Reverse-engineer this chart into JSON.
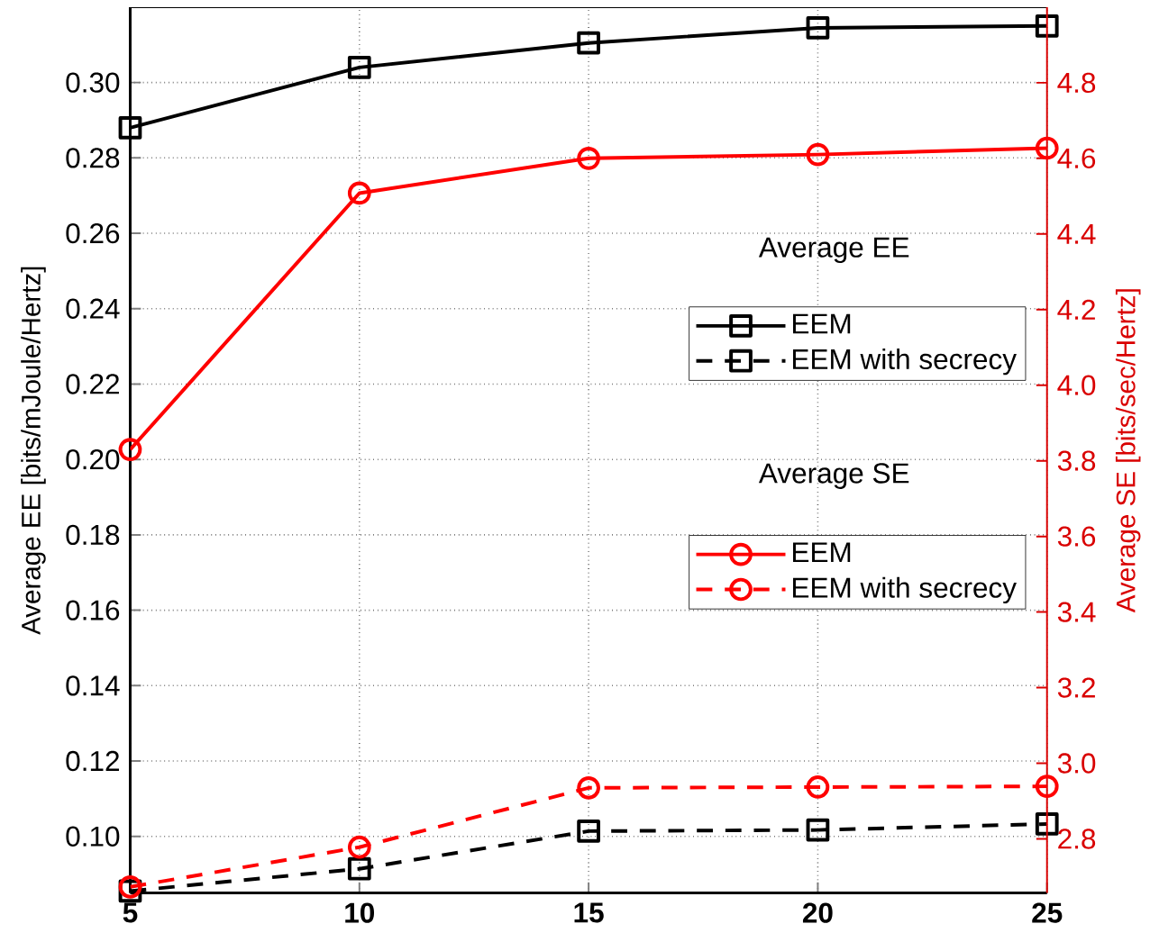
{
  "chart_data": {
    "type": "line",
    "x": [
      5,
      10,
      15,
      20,
      25
    ],
    "xlim": [
      5,
      25
    ],
    "xticks": [
      5,
      10,
      15,
      20,
      25
    ],
    "ylim": [
      0.085,
      0.32
    ],
    "yticks": [
      {
        "value": 0.1,
        "label": "0.10"
      },
      {
        "value": 0.12,
        "label": "0.12"
      },
      {
        "value": 0.14,
        "label": "0.14"
      },
      {
        "value": 0.16,
        "label": "0.16"
      },
      {
        "value": 0.18,
        "label": "0.18"
      },
      {
        "value": 0.2,
        "label": "0.20"
      },
      {
        "value": 0.22,
        "label": "0.22"
      },
      {
        "value": 0.24,
        "label": "0.24"
      },
      {
        "value": 0.26,
        "label": "0.26"
      },
      {
        "value": 0.28,
        "label": "0.28"
      },
      {
        "value": 0.3,
        "label": "0.30"
      }
    ],
    "y2lim": [
      2.657,
      5.0
    ],
    "y2ticks": [
      2.8,
      {
        "value": 3.0,
        "label": "3.0"
      },
      3.2,
      3.4,
      3.6,
      3.8,
      {
        "value": 4.0,
        "label": "4.0"
      },
      4.2,
      4.4,
      4.6,
      4.8
    ],
    "ylabel": "Average EE [bits/mJoule/Hertz]",
    "y2label": "Average SE [bits/sec/Hertz]",
    "grid": true,
    "legend": "right",
    "annotations": [
      "Average EE",
      "Average SE"
    ],
    "series": [
      {
        "name": "EEM",
        "color": "#000000",
        "marker": "square",
        "line_style": "solid",
        "values": [
          0.288,
          0.304,
          0.3105,
          0.3145,
          0.315
        ]
      },
      {
        "name": "EEM with secrecy",
        "color": "#000000",
        "marker": "square",
        "line_style": "dashed",
        "values": [
          0.0855,
          0.0914,
          0.1014,
          0.1017,
          0.1033
        ]
      },
      {
        "name": "EEM",
        "color": "#ff0000",
        "marker": "circle",
        "line_style": "solid",
        "axis": "y2",
        "values": [
          3.83,
          4.508,
          4.6,
          4.61,
          4.627
        ]
      },
      {
        "name": "EEM with secrecy",
        "color": "#ff0000",
        "marker": "circle",
        "line_style": "dashed",
        "axis": "y2",
        "values": [
          2.673,
          2.778,
          2.935,
          2.937,
          2.939
        ]
      }
    ]
  }
}
